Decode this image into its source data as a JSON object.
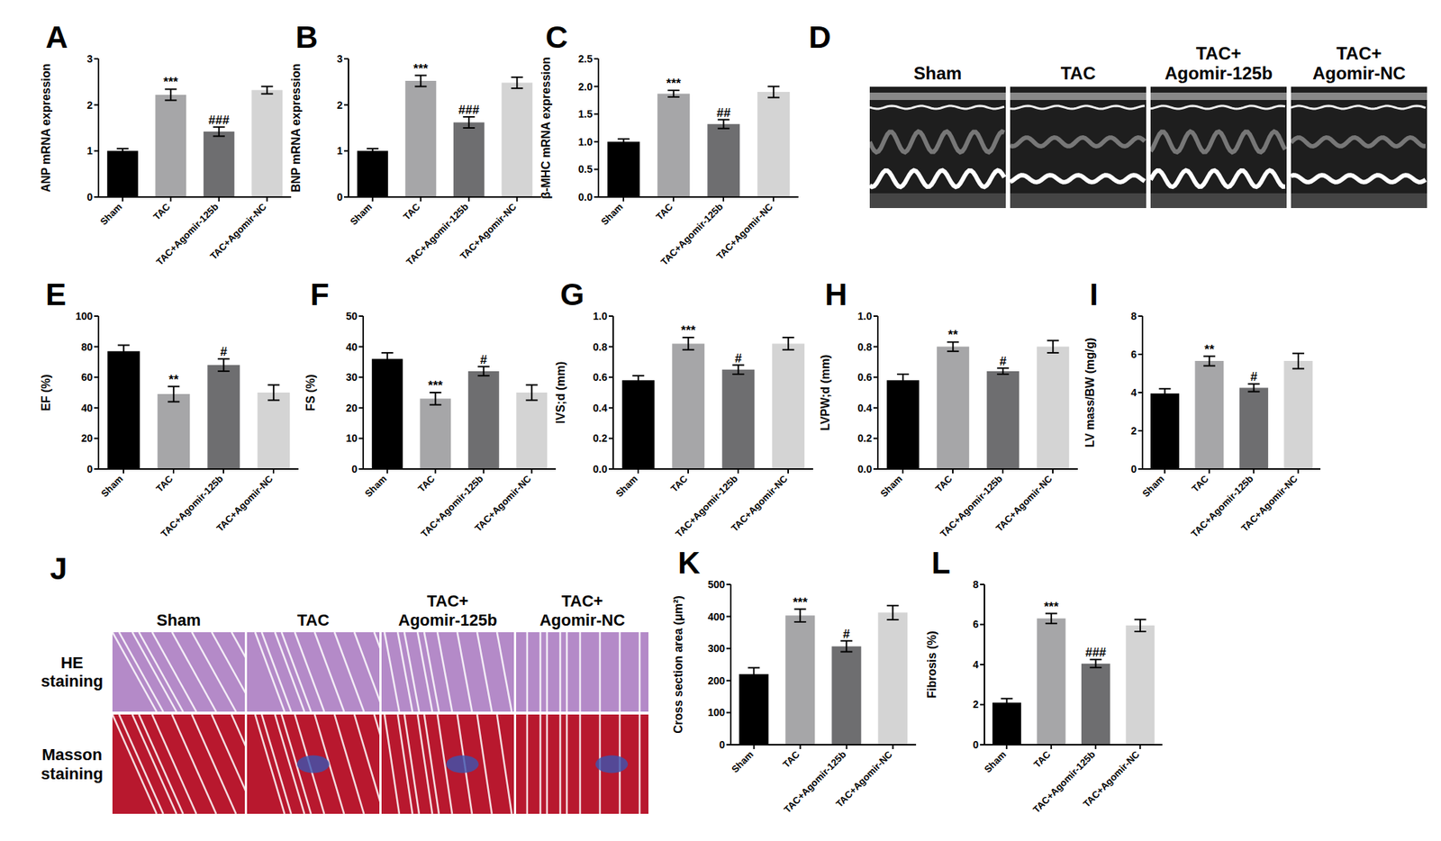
{
  "chart_data": [
    {
      "type": "bar",
      "title": "A",
      "y_label": "ANP mRNA expression",
      "categories": [
        "Sham",
        "TAC",
        "TAC+Agomir-125b",
        "TAC+Agomir-NC"
      ],
      "values": [
        1.0,
        2.22,
        1.42,
        2.32
      ],
      "errors": [
        0.05,
        0.12,
        0.1,
        0.08
      ],
      "colors": [
        "#000000",
        "#a6a6a8",
        "#6e6e70",
        "#d4d4d4"
      ],
      "ylim": [
        0,
        3
      ],
      "yticks": [
        0,
        1,
        2,
        3
      ],
      "annotations": [
        null,
        "***",
        "###",
        null
      ]
    },
    {
      "type": "bar",
      "title": "B",
      "y_label": "BNP mRNA expression",
      "categories": [
        "Sham",
        "TAC",
        "TAC+Agomir-125b",
        "TAC+Agomir-NC"
      ],
      "values": [
        1.0,
        2.52,
        1.62,
        2.48
      ],
      "errors": [
        0.05,
        0.12,
        0.12,
        0.12
      ],
      "colors": [
        "#000000",
        "#a6a6a8",
        "#6e6e70",
        "#d4d4d4"
      ],
      "ylim": [
        0,
        3
      ],
      "yticks": [
        0,
        1,
        2,
        3
      ],
      "annotations": [
        null,
        "***",
        "###",
        null
      ]
    },
    {
      "type": "bar",
      "title": "C",
      "y_label": "β-MHC mRNA expression",
      "categories": [
        "Sham",
        "TAC",
        "TAC+Agomir-125b",
        "TAC+Agomir-NC"
      ],
      "values": [
        1.0,
        1.87,
        1.32,
        1.9
      ],
      "errors": [
        0.05,
        0.06,
        0.08,
        0.1
      ],
      "colors": [
        "#000000",
        "#a6a6a8",
        "#6e6e70",
        "#d4d4d4"
      ],
      "ylim": [
        0,
        2.5
      ],
      "yticks": [
        {
          "value": 0,
          "label": "0.0"
        },
        {
          "value": 0.5,
          "label": "0.5"
        },
        {
          "value": 1,
          "label": "1.0"
        },
        {
          "value": 1.5,
          "label": "1.5"
        },
        {
          "value": 2,
          "label": "2.0"
        },
        {
          "value": 2.5,
          "label": "2.5"
        }
      ],
      "annotations": [
        null,
        "***",
        "##",
        null
      ]
    },
    {
      "type": "bar",
      "title": "E",
      "y_label": "EF (%)",
      "categories": [
        "Sham",
        "TAC",
        "TAC+Agomir-125b",
        "TAC+Agomir-NC"
      ],
      "values": [
        77,
        49,
        68,
        50
      ],
      "errors": [
        4,
        5,
        4,
        5
      ],
      "colors": [
        "#000000",
        "#a6a6a8",
        "#6e6e70",
        "#d4d4d4"
      ],
      "ylim": [
        0,
        100
      ],
      "yticks": [
        0,
        20,
        40,
        60,
        80,
        100
      ],
      "annotations": [
        null,
        "**",
        "#",
        null
      ]
    },
    {
      "type": "bar",
      "title": "F",
      "y_label": "FS (%)",
      "categories": [
        "Sham",
        "TAC",
        "TAC+Agomir-125b",
        "TAC+Agomir-NC"
      ],
      "values": [
        36,
        23,
        32,
        25
      ],
      "errors": [
        2,
        2,
        1.5,
        2.5
      ],
      "colors": [
        "#000000",
        "#a6a6a8",
        "#6e6e70",
        "#d4d4d4"
      ],
      "ylim": [
        0,
        50
      ],
      "yticks": [
        0,
        10,
        20,
        30,
        40,
        50
      ],
      "annotations": [
        null,
        "***",
        "#",
        null
      ]
    },
    {
      "type": "bar",
      "title": "G",
      "y_label": "IVS;d (mm)",
      "categories": [
        "Sham",
        "TAC",
        "TAC+Agomir-125b",
        "TAC+Agomir-NC"
      ],
      "values": [
        0.58,
        0.82,
        0.65,
        0.82
      ],
      "errors": [
        0.03,
        0.04,
        0.03,
        0.04
      ],
      "colors": [
        "#000000",
        "#a6a6a8",
        "#6e6e70",
        "#d4d4d4"
      ],
      "ylim": [
        0,
        1
      ],
      "yticks": [
        {
          "value": 0,
          "label": "0.0"
        },
        {
          "value": 0.2,
          "label": "0.2"
        },
        {
          "value": 0.4,
          "label": "0.4"
        },
        {
          "value": 0.6,
          "label": "0.6"
        },
        {
          "value": 0.8,
          "label": "0.8"
        },
        {
          "value": 1,
          "label": "1.0"
        }
      ],
      "annotations": [
        null,
        "***",
        "#",
        null
      ]
    },
    {
      "type": "bar",
      "title": "H",
      "y_label": "LVPW;d (mm)",
      "categories": [
        "Sham",
        "TAC",
        "TAC+Agomir-125b",
        "TAC+Agomir-NC"
      ],
      "values": [
        0.58,
        0.8,
        0.64,
        0.8
      ],
      "errors": [
        0.04,
        0.03,
        0.02,
        0.04
      ],
      "colors": [
        "#000000",
        "#a6a6a8",
        "#6e6e70",
        "#d4d4d4"
      ],
      "ylim": [
        0,
        1
      ],
      "yticks": [
        {
          "value": 0,
          "label": "0.0"
        },
        {
          "value": 0.2,
          "label": "0.2"
        },
        {
          "value": 0.4,
          "label": "0.4"
        },
        {
          "value": 0.6,
          "label": "0.6"
        },
        {
          "value": 0.8,
          "label": "0.8"
        },
        {
          "value": 1,
          "label": "1.0"
        }
      ],
      "annotations": [
        null,
        "**",
        "#",
        null
      ]
    },
    {
      "type": "bar",
      "title": "I",
      "y_label": "LV mass/BW (mg/g)",
      "categories": [
        "Sham",
        "TAC",
        "TAC+Agomir-125b",
        "TAC+Agomir-NC"
      ],
      "values": [
        3.95,
        5.65,
        4.25,
        5.65
      ],
      "errors": [
        0.25,
        0.25,
        0.2,
        0.4
      ],
      "colors": [
        "#000000",
        "#a6a6a8",
        "#6e6e70",
        "#d4d4d4"
      ],
      "ylim": [
        0,
        8
      ],
      "yticks": [
        0,
        2,
        4,
        6,
        8
      ],
      "annotations": [
        null,
        "**",
        "#",
        null
      ]
    },
    {
      "type": "bar",
      "title": "K",
      "y_label": "Cross section area (μm²)",
      "categories": [
        "Sham",
        "TAC",
        "TAC+Agomir-125b",
        "TAC+Agomir-NC"
      ],
      "values": [
        220,
        403,
        307,
        412
      ],
      "errors": [
        20,
        20,
        17,
        22
      ],
      "colors": [
        "#000000",
        "#a6a6a8",
        "#6e6e70",
        "#d4d4d4"
      ],
      "ylim": [
        0,
        500
      ],
      "yticks": [
        0,
        100,
        200,
        300,
        400,
        500
      ],
      "annotations": [
        null,
        "***",
        "#",
        null
      ]
    },
    {
      "type": "bar",
      "title": "L",
      "y_label": "Fibrosis (%)",
      "categories": [
        "Sham",
        "TAC",
        "TAC+Agomir-125b",
        "TAC+Agomir-NC"
      ],
      "values": [
        2.1,
        6.3,
        4.05,
        5.95
      ],
      "errors": [
        0.2,
        0.25,
        0.2,
        0.3
      ],
      "colors": [
        "#000000",
        "#a6a6a8",
        "#6e6e70",
        "#d4d4d4"
      ],
      "ylim": [
        0,
        8
      ],
      "yticks": [
        0,
        2,
        4,
        6,
        8
      ],
      "annotations": [
        null,
        "***",
        "###",
        null
      ]
    }
  ],
  "panel_D": {
    "label": "D",
    "columns": [
      [
        "Sham"
      ],
      [
        "TAC"
      ],
      [
        "TAC+",
        "Agomir-125b"
      ],
      [
        "TAC+",
        "Agomir-NC"
      ]
    ]
  },
  "panel_J": {
    "label": "J",
    "columns": [
      [
        "Sham"
      ],
      [
        "TAC"
      ],
      [
        "TAC+",
        "Agomir-125b"
      ],
      [
        "TAC+",
        "Agomir-NC"
      ]
    ],
    "rows": [
      [
        "HE",
        "staining"
      ],
      [
        "Masson",
        "staining"
      ]
    ]
  }
}
